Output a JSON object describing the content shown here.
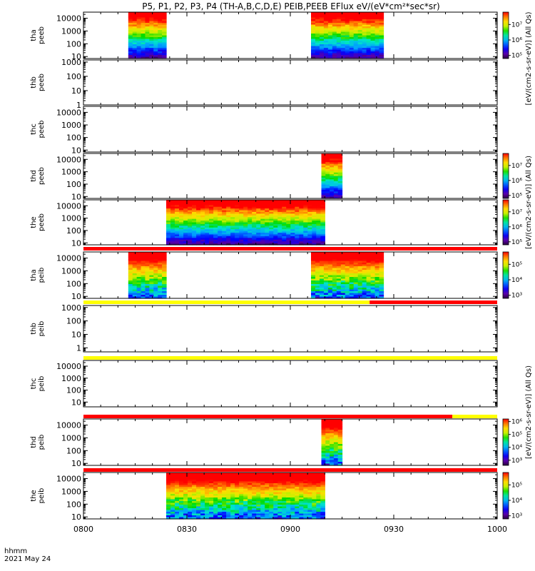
{
  "title": "P5, P1, P2, P3, P4 (TH-A,B,C,D,E) PEIB,PEEB EFlux eV/(eV*cm²*sec*sr)",
  "time_axis": {
    "tick_labels": [
      "0800",
      "0830",
      "0900",
      "0930",
      "1000"
    ],
    "range_minutes": [
      0,
      120
    ],
    "row_label": "hhmm",
    "date": "2021 May 24"
  },
  "colorbar_label_full": "[eV/(cm2-s-sr-eV)] (All Qs)",
  "colorbar_labels": [
    {
      "text": "[eV/(cm2-s-sr-eV)] (All Qs)",
      "panels": [
        0,
        1
      ]
    },
    {
      "text": "[eV/(cm2-s-sr-eV)] (All Qs)",
      "panels": [
        2,
        3,
        4,
        5
      ]
    },
    {
      "text": "[eV/(cm2-s-sr-eV)] (All Qs)",
      "panels": [
        6,
        7,
        8,
        9
      ]
    }
  ],
  "panels": [
    {
      "probe": "tha",
      "instrument": "peeb",
      "yticks": [
        "10",
        "100",
        "1000",
        "10000"
      ],
      "ylim": [
        7,
        30000
      ],
      "colorbar": {
        "ticks": [
          "10⁵",
          "10⁶",
          "10⁷"
        ],
        "exp_min": 4.8,
        "exp_max": 7.8
      },
      "data_intervals": [
        [
          13,
          24
        ],
        [
          66,
          87
        ]
      ],
      "bar_above": null
    },
    {
      "probe": "thb",
      "instrument": "peeb",
      "yticks": [
        "1",
        "10",
        "100",
        "1000"
      ],
      "ylim": [
        1,
        1400
      ],
      "colorbar": null,
      "data_intervals": [],
      "bar_above": null
    },
    {
      "probe": "thc",
      "instrument": "peeb",
      "yticks": [
        "10",
        "100",
        "1000",
        "10000"
      ],
      "ylim": [
        7,
        30000
      ],
      "colorbar": null,
      "data_intervals": [],
      "bar_above": null
    },
    {
      "probe": "thd",
      "instrument": "peeb",
      "yticks": [
        "10",
        "100",
        "1000",
        "10000"
      ],
      "ylim": [
        7,
        30000
      ],
      "colorbar": {
        "ticks": [
          "10⁵",
          "10⁶",
          "10⁷"
        ],
        "exp_min": 4.8,
        "exp_max": 7.8
      },
      "data_intervals": [
        [
          69,
          75
        ]
      ],
      "bar_above": null
    },
    {
      "probe": "the",
      "instrument": "peeb",
      "yticks": [
        "10",
        "100",
        "1000",
        "10000"
      ],
      "ylim": [
        7,
        30000
      ],
      "colorbar": {
        "ticks": [
          "10⁵",
          "10⁶",
          "10⁷"
        ],
        "exp_min": 4.8,
        "exp_max": 7.8
      },
      "data_intervals": [
        [
          24,
          70
        ]
      ],
      "bar_above": null
    },
    {
      "probe": "tha",
      "instrument": "peib",
      "yticks": [
        "10",
        "100",
        "1000",
        "10000"
      ],
      "ylim": [
        7,
        30000
      ],
      "colorbar": {
        "ticks": [
          "10³",
          "10⁴",
          "10⁵"
        ],
        "exp_min": 2.8,
        "exp_max": 5.8
      },
      "data_intervals": [
        [
          13,
          24
        ],
        [
          66,
          87
        ]
      ],
      "bar_above": [
        {
          "from": 0,
          "to": 120,
          "color": "#ff0000"
        }
      ]
    },
    {
      "probe": "thb",
      "instrument": "peib",
      "yticks": [
        "1",
        "10",
        "100",
        "1000"
      ],
      "ylim": [
        0.5,
        1400
      ],
      "colorbar": null,
      "data_intervals": [],
      "bar_above": [
        {
          "from": 0,
          "to": 83,
          "color": "#ffff00"
        },
        {
          "from": 83,
          "to": 120,
          "color": "#ff0000"
        }
      ]
    },
    {
      "probe": "thc",
      "instrument": "peib",
      "yticks": [
        "10",
        "100",
        "1000",
        "10000"
      ],
      "ylim": [
        4,
        30000
      ],
      "colorbar": null,
      "data_intervals": [],
      "bar_above": [
        {
          "from": 0,
          "to": 120,
          "color": "#ffff00"
        }
      ]
    },
    {
      "probe": "thd",
      "instrument": "peib",
      "yticks": [
        "10",
        "100",
        "1000",
        "10000"
      ],
      "ylim": [
        7,
        30000
      ],
      "colorbar": {
        "ticks": [
          "10³",
          "10⁴",
          "10⁵",
          "10⁶"
        ],
        "exp_min": 2.6,
        "exp_max": 6.2
      },
      "data_intervals": [
        [
          69,
          75
        ]
      ],
      "bar_above": [
        {
          "from": 0,
          "to": 107,
          "color": "#ff0000"
        },
        {
          "from": 107,
          "to": 120,
          "color": "#ffff00"
        }
      ]
    },
    {
      "probe": "the",
      "instrument": "peib",
      "yticks": [
        "10",
        "100",
        "1000",
        "10000"
      ],
      "ylim": [
        7,
        30000
      ],
      "colorbar": {
        "ticks": [
          "10³",
          "10⁴",
          "10⁵"
        ],
        "exp_min": 2.8,
        "exp_max": 5.8
      },
      "data_intervals": [
        [
          24,
          70
        ]
      ],
      "bar_above": [
        {
          "from": 0,
          "to": 120,
          "color": "#ff0000"
        }
      ]
    }
  ]
}
